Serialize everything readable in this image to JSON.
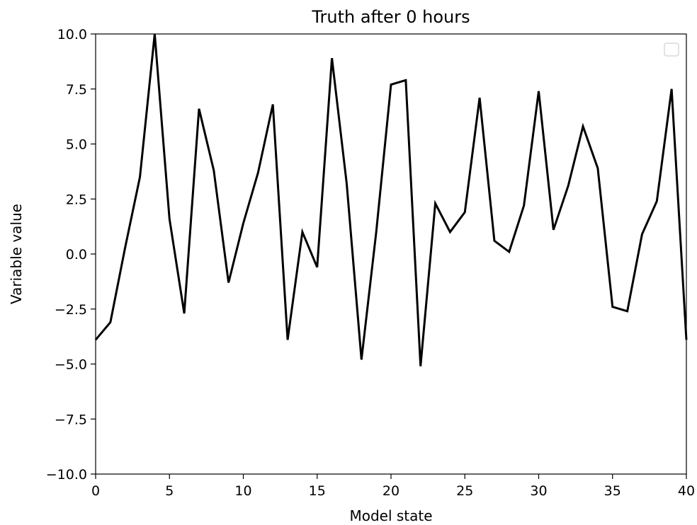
{
  "chart_data": {
    "type": "line",
    "title": "Truth after 0 hours",
    "xlabel": "Model state",
    "ylabel": "Variable value",
    "xlim": [
      0,
      40
    ],
    "ylim": [
      -10,
      10
    ],
    "x_ticks": [
      "0",
      "5",
      "10",
      "15",
      "20",
      "25",
      "30",
      "35",
      "40"
    ],
    "y_ticks": [
      "−10.0",
      "−7.5",
      "−5.0",
      "−2.5",
      "0.0",
      "2.5",
      "5.0",
      "7.5",
      "10.0"
    ],
    "grid": false,
    "legend": "top-right (empty)",
    "line_color": "#000000",
    "series": [
      {
        "x": [
          0,
          1,
          2,
          3,
          4,
          5,
          6,
          7,
          8,
          9,
          10,
          11,
          12,
          13,
          14,
          15,
          16,
          17,
          18,
          19,
          20,
          21,
          22,
          23,
          24,
          25,
          26,
          27,
          28,
          29,
          30,
          31,
          32,
          33,
          34,
          35,
          36,
          37,
          38,
          39,
          40
        ],
        "values": [
          -3.9,
          -3.1,
          0.3,
          3.5,
          10.0,
          1.6,
          -2.7,
          6.6,
          3.8,
          -1.3,
          1.4,
          3.7,
          6.8,
          -3.9,
          1.0,
          -0.6,
          8.9,
          3.2,
          -4.8,
          1.0,
          7.7,
          7.9,
          -5.1,
          2.3,
          1.0,
          1.9,
          7.1,
          0.6,
          0.1,
          2.2,
          7.4,
          1.1,
          3.1,
          5.8,
          3.9,
          -2.4,
          -2.6,
          0.9,
          2.4,
          7.5,
          -3.9
        ]
      }
    ]
  }
}
